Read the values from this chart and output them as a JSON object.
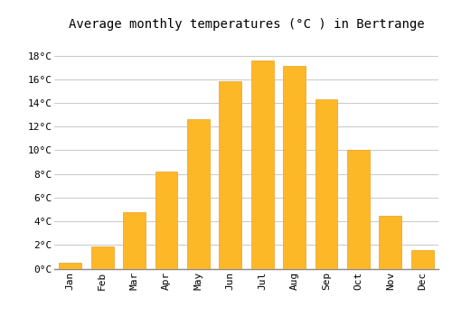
{
  "title": "Average monthly temperatures (°C ) in Bertrange",
  "months": [
    "Jan",
    "Feb",
    "Mar",
    "Apr",
    "May",
    "Jun",
    "Jul",
    "Aug",
    "Sep",
    "Oct",
    "Nov",
    "Dec"
  ],
  "values": [
    0.5,
    1.9,
    4.8,
    8.2,
    12.6,
    15.8,
    17.6,
    17.1,
    14.3,
    10.0,
    4.5,
    1.6
  ],
  "bar_color": "#FDB827",
  "bar_edge_color": "#E8A020",
  "background_color": "#FFFFFF",
  "grid_color": "#CCCCCC",
  "yticks": [
    0,
    2,
    4,
    6,
    8,
    10,
    12,
    14,
    16,
    18
  ],
  "ytick_labels": [
    "0°C",
    "2°C",
    "4°C",
    "6°C",
    "8°C",
    "10°C",
    "12°C",
    "14°C",
    "16°C",
    "18°C"
  ],
  "ylim": [
    0,
    19.5
  ],
  "title_fontsize": 10,
  "tick_fontsize": 8,
  "font_family": "monospace"
}
